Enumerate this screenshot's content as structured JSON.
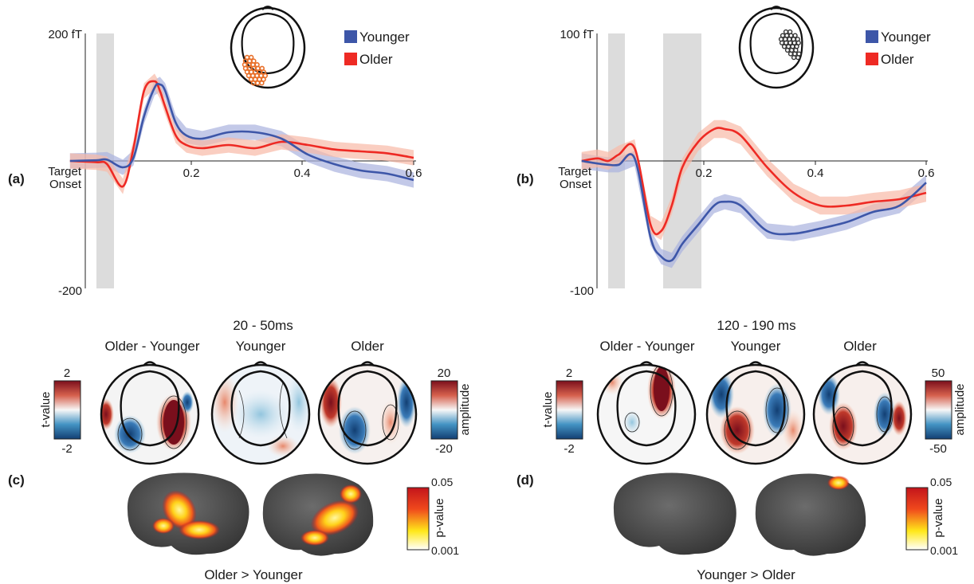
{
  "colors": {
    "younger": "#3d56a8",
    "older": "#ee2a24",
    "younger_band": "#aab2de",
    "older_band": "#f8b9a6",
    "grey_window": "#dcdcdc"
  },
  "panel_a": {
    "label": "(a)",
    "ymax_label": "200 fT",
    "ymin_label": "-200",
    "onset_label_1": "Target",
    "onset_label_2": "Onset",
    "legend": [
      "Younger",
      "Older"
    ],
    "xticks": [
      "0.2",
      "0.4",
      "0.6"
    ]
  },
  "panel_b": {
    "label": "(b)",
    "ymax_label": "100 fT",
    "ymin_label": "-100",
    "onset_label_1": "Target",
    "onset_label_2": "Onset",
    "legend": [
      "Younger",
      "Older"
    ],
    "xticks": [
      "0.2",
      "0.4",
      "0.6"
    ]
  },
  "panel_c": {
    "label": "(c)",
    "window": "20 - 50ms",
    "maps": [
      "Older - Younger",
      "Younger",
      "Older"
    ],
    "tval_label": "t-value",
    "tval_max": "2",
    "tval_min": "-2",
    "amp_label": "amplitude",
    "amp_max": "20",
    "amp_min": "-20",
    "pval_label": "p-value",
    "pval_max": "0.05",
    "pval_min": "0.001",
    "contrast": "Older > Younger"
  },
  "panel_d": {
    "label": "(d)",
    "window": "120 - 190 ms",
    "maps": [
      "Older - Younger",
      "Younger",
      "Older"
    ],
    "tval_label": "t-value",
    "tval_max": "2",
    "tval_min": "-2",
    "amp_label": "amplitude",
    "amp_max": "50",
    "amp_min": "-50",
    "pval_label": "p-value",
    "pval_max": "0.05",
    "pval_min": "0.001",
    "contrast": "Younger > Older"
  },
  "chart_data": [
    {
      "type": "line",
      "title": "",
      "xlabel": "",
      "ylabel": "",
      "xlim": [
        -0.05,
        0.6
      ],
      "ylim": [
        -200,
        200
      ],
      "shaded_windows": [
        [
          0.02,
          0.05
        ]
      ],
      "series": [
        {
          "name": "Younger",
          "x": [
            -0.05,
            0.0,
            0.02,
            0.05,
            0.07,
            0.09,
            0.11,
            0.12,
            0.13,
            0.15,
            0.17,
            0.2,
            0.25,
            0.3,
            0.35,
            0.4,
            0.45,
            0.5,
            0.55,
            0.6
          ],
          "y": [
            0,
            1,
            2,
            -10,
            5,
            70,
            115,
            120,
            110,
            60,
            40,
            35,
            45,
            45,
            35,
            10,
            -5,
            -15,
            -20,
            -30
          ]
        },
        {
          "name": "Older",
          "x": [
            -0.05,
            0.0,
            0.02,
            0.05,
            0.07,
            0.09,
            0.11,
            0.12,
            0.13,
            0.15,
            0.17,
            0.2,
            0.25,
            0.3,
            0.35,
            0.4,
            0.45,
            0.5,
            0.55,
            0.6
          ],
          "y": [
            0,
            -2,
            -5,
            -40,
            20,
            110,
            125,
            110,
            85,
            40,
            25,
            20,
            25,
            20,
            30,
            25,
            18,
            15,
            12,
            5
          ]
        }
      ]
    },
    {
      "type": "line",
      "title": "",
      "xlabel": "",
      "ylabel": "",
      "xlim": [
        -0.05,
        0.6
      ],
      "ylim": [
        -100,
        100
      ],
      "shaded_windows": [
        [
          0.02,
          0.05
        ],
        [
          0.12,
          0.19
        ]
      ],
      "series": [
        {
          "name": "Younger",
          "x": [
            -0.05,
            -0.02,
            0.0,
            0.02,
            0.05,
            0.08,
            0.1,
            0.12,
            0.14,
            0.17,
            0.2,
            0.22,
            0.25,
            0.3,
            0.35,
            0.4,
            0.45,
            0.5,
            0.55,
            0.6
          ],
          "y": [
            0,
            -2,
            -3,
            -3,
            2,
            -60,
            -75,
            -78,
            -65,
            -50,
            -35,
            -32,
            -35,
            -55,
            -57,
            -53,
            -48,
            -40,
            -35,
            -17
          ]
        },
        {
          "name": "Older",
          "x": [
            -0.05,
            -0.02,
            0.0,
            0.02,
            0.05,
            0.08,
            0.1,
            0.12,
            0.14,
            0.17,
            0.2,
            0.22,
            0.25,
            0.3,
            0.35,
            0.4,
            0.45,
            0.5,
            0.55,
            0.6
          ],
          "y": [
            0,
            2,
            0,
            5,
            10,
            -50,
            -55,
            -35,
            -5,
            15,
            25,
            25,
            20,
            -5,
            -25,
            -35,
            -35,
            -32,
            -30,
            -25
          ]
        }
      ]
    }
  ]
}
